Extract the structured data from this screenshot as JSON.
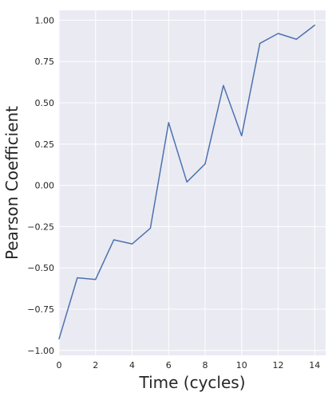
{
  "chart_data": {
    "type": "line",
    "title": "",
    "xlabel": "Time (cycles)",
    "ylabel": "Pearson Coefficient",
    "xlim": [
      0,
      14.6
    ],
    "ylim": [
      -1.03,
      1.06
    ],
    "xticks": [
      0,
      2,
      4,
      6,
      8,
      10,
      12,
      14
    ],
    "yticks": [
      -1.0,
      -0.75,
      -0.5,
      -0.25,
      0.0,
      0.25,
      0.5,
      0.75,
      1.0
    ],
    "xtick_labels": [
      "0",
      "2",
      "4",
      "6",
      "8",
      "10",
      "12",
      "14"
    ],
    "ytick_labels": [
      "−1.00",
      "−0.75",
      "−0.50",
      "−0.25",
      "0.00",
      "0.25",
      "0.50",
      "0.75",
      "1.00"
    ],
    "grid": true,
    "background_color": "#EAEAF2",
    "grid_color": "#FFFFFF",
    "series": [
      {
        "color": "#4C72B0",
        "x": [
          0,
          1,
          2,
          3,
          4,
          5,
          6,
          7,
          8,
          9,
          10,
          11,
          12,
          13,
          14
        ],
        "y": [
          -0.93,
          -0.56,
          -0.57,
          -0.33,
          -0.355,
          -0.26,
          0.38,
          0.02,
          0.13,
          0.605,
          0.3,
          0.86,
          0.92,
          0.885,
          0.97
        ]
      }
    ]
  }
}
